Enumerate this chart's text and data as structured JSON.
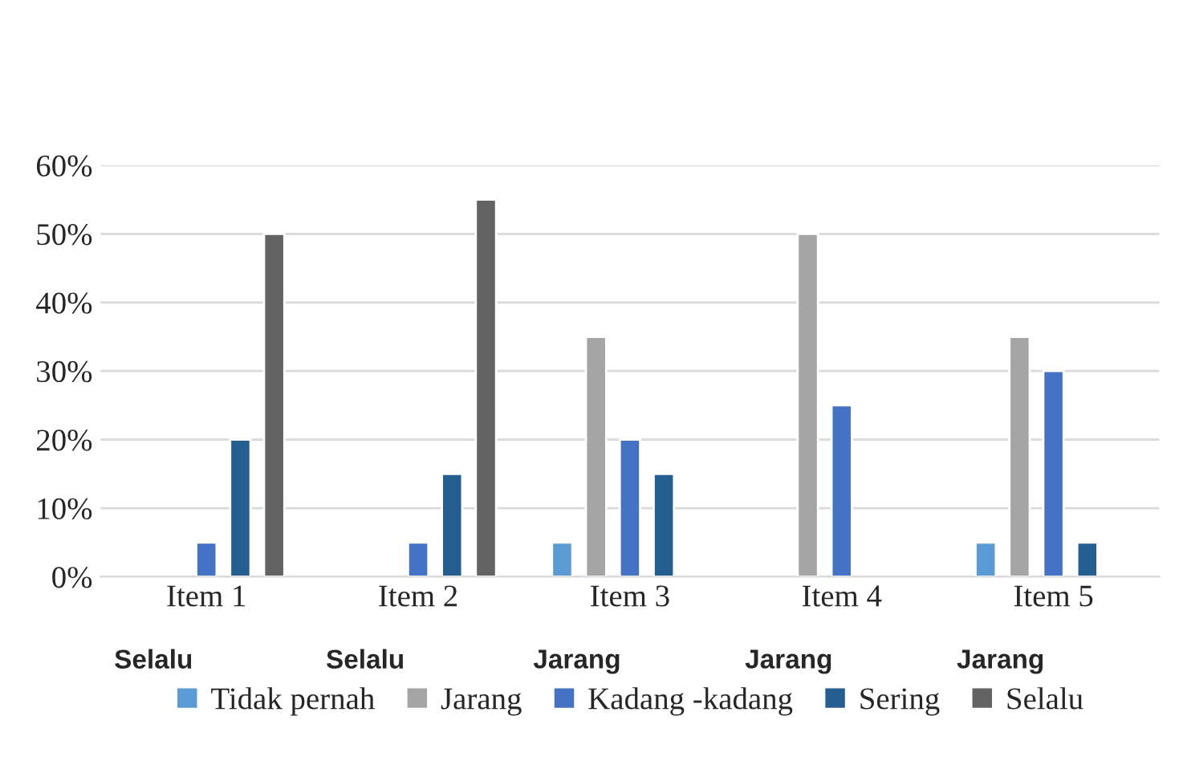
{
  "chart_data": {
    "type": "bar",
    "categories": [
      "Item 1",
      "Item 2",
      "Item 3",
      "Item 4",
      "Item 5"
    ],
    "series": [
      {
        "name": "Tidak pernah",
        "color": "#5b9bd5",
        "values": [
          null,
          null,
          5,
          null,
          5
        ]
      },
      {
        "name": "Jarang",
        "color": "#a5a5a5",
        "values": [
          null,
          null,
          35,
          50,
          35
        ]
      },
      {
        "name": "Kadang -kadang",
        "color": "#4472c4",
        "values": [
          5,
          5,
          20,
          25,
          30
        ]
      },
      {
        "name": "Sering",
        "color": "#255e91",
        "values": [
          20,
          15,
          15,
          null,
          5
        ]
      },
      {
        "name": "Selalu",
        "color": "#636363",
        "values": [
          50,
          55,
          null,
          null,
          null
        ]
      }
    ],
    "ylim": [
      0,
      60
    ],
    "yticks": [
      {
        "value": 0,
        "label": "0%"
      },
      {
        "value": 10,
        "label": "10%"
      },
      {
        "value": 20,
        "label": "20%"
      },
      {
        "value": 30,
        "label": "30%"
      },
      {
        "value": 40,
        "label": "40%"
      },
      {
        "value": 50,
        "label": "50%"
      },
      {
        "value": 60,
        "label": "60%"
      }
    ],
    "grid": "y",
    "legend": "bottom",
    "annotations": [
      "Selalu",
      "Selalu",
      "Jarang",
      "Jarang",
      "Jarang"
    ]
  }
}
